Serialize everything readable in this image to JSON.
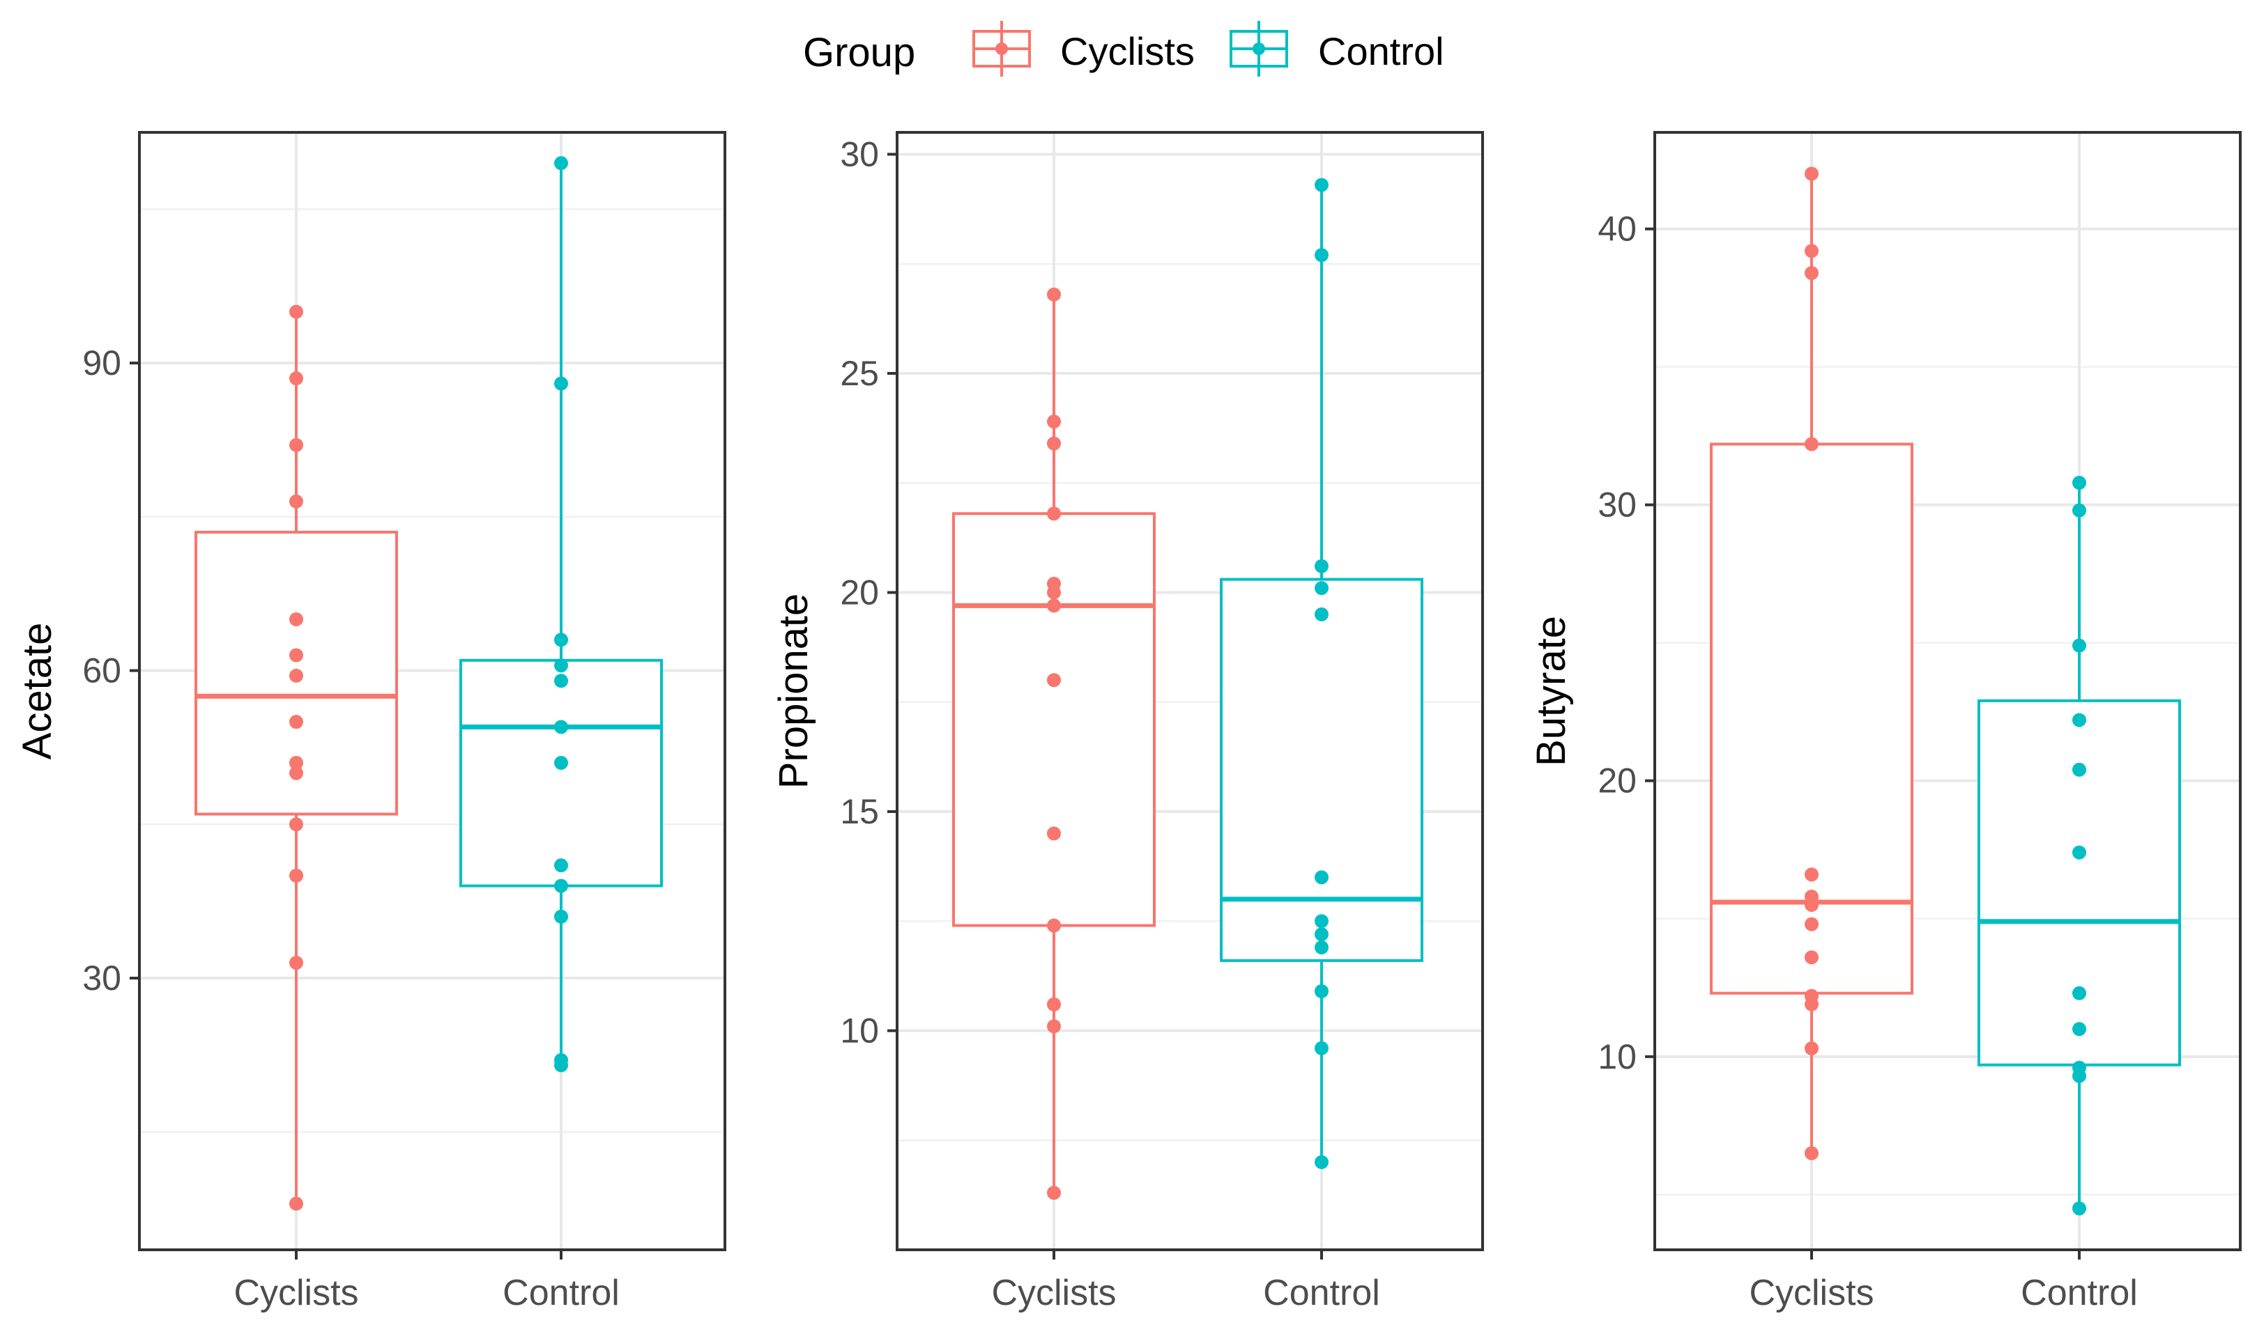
{
  "legend": {
    "title": "Group",
    "items": [
      {
        "label": "Cyclists",
        "color": "#F8766D"
      },
      {
        "label": "Control",
        "color": "#00BFC4"
      }
    ]
  },
  "chart_data": [
    {
      "type": "boxplot",
      "ylabel": "Acetate",
      "categories": [
        "Cyclists",
        "Control"
      ],
      "ylim": [
        3.5,
        112.5
      ],
      "yticks": [
        30,
        60,
        90
      ],
      "series": [
        {
          "name": "Cyclists",
          "color": "#F8766D",
          "box": {
            "min": 8,
            "q1": 46,
            "median": 57.5,
            "q3": 73.5,
            "max": 95
          },
          "points": [
            95,
            88.5,
            82,
            76.5,
            65,
            61.5,
            59.5,
            55,
            51,
            50,
            45,
            40,
            31.5,
            8
          ]
        },
        {
          "name": "Control",
          "color": "#00BFC4",
          "box": {
            "min": 21.5,
            "q1": 39,
            "median": 54.5,
            "q3": 61,
            "max": 109.5
          },
          "points": [
            109.5,
            88,
            63,
            60.5,
            59,
            54.5,
            51,
            41,
            39,
            36,
            22,
            21.5
          ]
        }
      ]
    },
    {
      "type": "boxplot",
      "ylabel": "Propionate",
      "categories": [
        "Cyclists",
        "Control"
      ],
      "ylim": [
        5,
        30.5
      ],
      "yticks": [
        10,
        15,
        20,
        25,
        30
      ],
      "series": [
        {
          "name": "Cyclists",
          "color": "#F8766D",
          "box": {
            "min": 6.3,
            "q1": 12.4,
            "median": 19.7,
            "q3": 21.8,
            "max": 26.8
          },
          "points": [
            26.8,
            23.9,
            23.4,
            21.8,
            20.2,
            20.0,
            19.7,
            18.0,
            14.5,
            12.4,
            10.6,
            10.1,
            6.3
          ]
        },
        {
          "name": "Control",
          "color": "#00BFC4",
          "box": {
            "min": 7.0,
            "q1": 11.6,
            "median": 13.0,
            "q3": 20.3,
            "max": 29.3
          },
          "points": [
            29.3,
            27.7,
            20.6,
            20.1,
            19.5,
            13.5,
            12.5,
            12.2,
            11.9,
            10.9,
            9.6,
            7.0
          ]
        }
      ]
    },
    {
      "type": "boxplot",
      "ylabel": "Butyrate",
      "categories": [
        "Cyclists",
        "Control"
      ],
      "ylim": [
        3.0,
        43.5
      ],
      "yticks": [
        10,
        20,
        30,
        40
      ],
      "series": [
        {
          "name": "Cyclists",
          "color": "#F8766D",
          "box": {
            "min": 6.5,
            "q1": 12.3,
            "median": 15.6,
            "q3": 32.2,
            "max": 42.0
          },
          "points": [
            42.0,
            39.2,
            38.4,
            32.2,
            16.6,
            15.8,
            15.5,
            14.8,
            13.6,
            12.2,
            11.9,
            10.3,
            6.5
          ]
        },
        {
          "name": "Control",
          "color": "#00BFC4",
          "box": {
            "min": 4.5,
            "q1": 9.7,
            "median": 14.9,
            "q3": 22.9,
            "max": 30.8
          },
          "points": [
            30.8,
            29.8,
            24.9,
            22.2,
            20.4,
            17.4,
            12.3,
            11.0,
            9.6,
            9.3,
            4.5
          ]
        }
      ]
    }
  ]
}
